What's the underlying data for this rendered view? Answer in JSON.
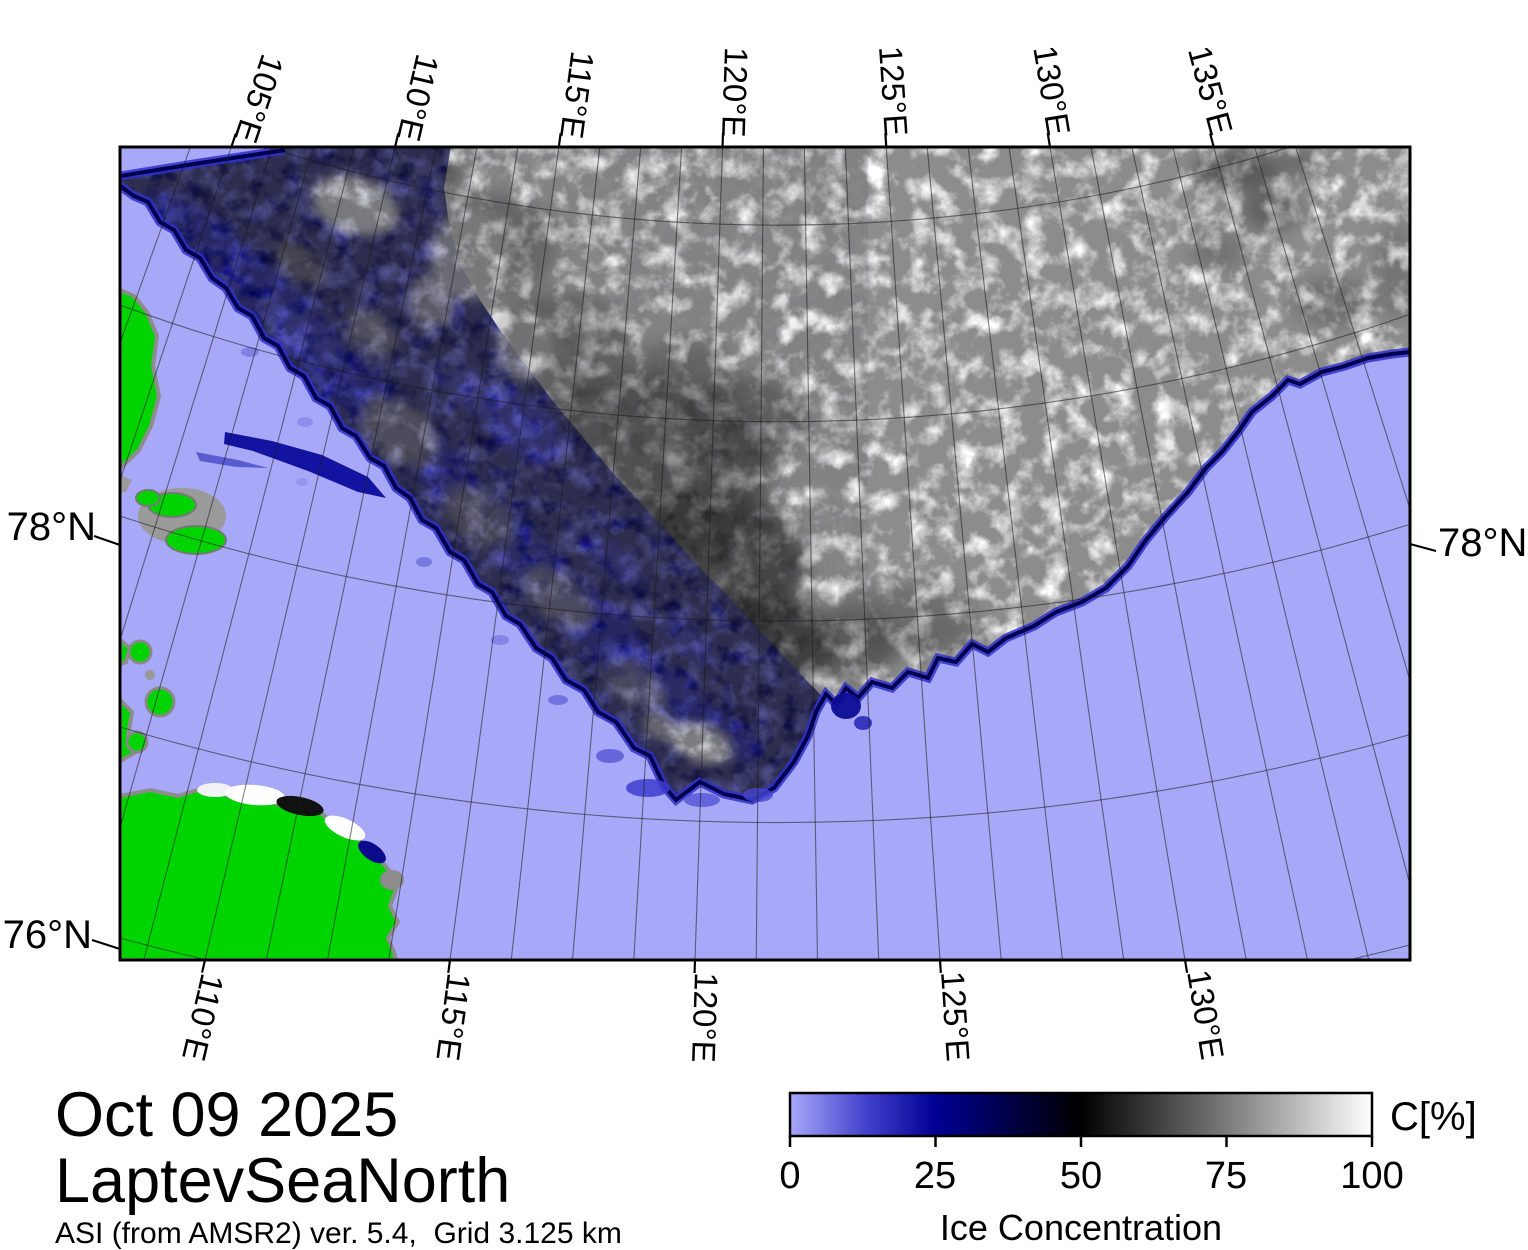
{
  "map": {
    "top_axis_labels": [
      "105°E",
      "110°E",
      "115°E",
      "120°E",
      "125°E",
      "130°E",
      "135°E"
    ],
    "bottom_axis_labels": [
      "110°E",
      "115°E",
      "120°E",
      "125°E",
      "130°E"
    ],
    "left_axis_labels": [
      "78°N",
      "76°N"
    ],
    "right_axis_labels": [
      "78°N"
    ]
  },
  "legend": {
    "unit": "C[%]",
    "title": "Ice Concentration",
    "ticks": [
      "0",
      "25",
      "50",
      "75",
      "100"
    ]
  },
  "caption": {
    "date": "Oct 09 2025",
    "region": "LaptevSeaNorth",
    "info": "ASI (from AMSR2) ver. 5.4,  Grid 3.125 km"
  },
  "colors": {
    "open_water": "#a8a8f8",
    "land": "#00d400",
    "coastline": "#8c8c8c",
    "ice_max": "#ffffff",
    "ice_edge": "#000050",
    "ice_low_fringe": "#3030c8"
  }
}
